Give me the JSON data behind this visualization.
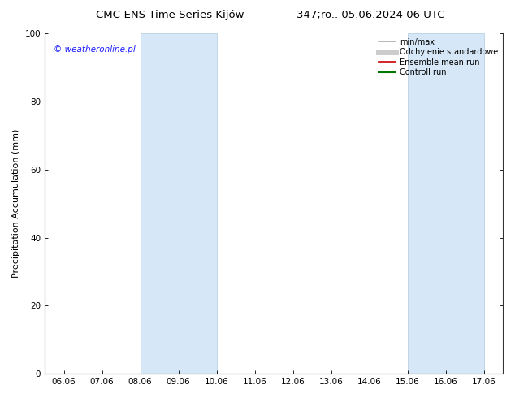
{
  "title_left": "CMC-ENS Time Series Kijów",
  "title_right": "347;ro.. 05.06.2024 06 UTC",
  "ylabel": "Precipitation Accumulation (mm)",
  "ylim": [
    0,
    100
  ],
  "yticks": [
    0,
    20,
    40,
    60,
    80,
    100
  ],
  "xtick_labels": [
    "06.06",
    "07.06",
    "08.06",
    "09.06",
    "10.06",
    "11.06",
    "12.06",
    "13.06",
    "14.06",
    "15.06",
    "16.06",
    "17.06"
  ],
  "xtick_positions": [
    0,
    1,
    2,
    3,
    4,
    5,
    6,
    7,
    8,
    9,
    10,
    11
  ],
  "xlim": [
    -0.5,
    11.5
  ],
  "shade_bands": [
    {
      "xmin": 2.0,
      "xmax": 4.0
    },
    {
      "xmin": 9.0,
      "xmax": 11.0
    }
  ],
  "shade_color": "#d6e8f7",
  "shade_alpha": 1.0,
  "shade_edge_color": "#b0cce0",
  "watermark": "© weatheronline.pl",
  "watermark_color": "#1a1aff",
  "watermark_fontsize": 7.5,
  "legend_entries": [
    {
      "label": "min/max",
      "color": "#aaaaaa",
      "lw": 1.2
    },
    {
      "label": "Odchylenie standardowe",
      "color": "#cccccc",
      "lw": 5
    },
    {
      "label": "Ensemble mean run",
      "color": "#cc0000",
      "lw": 1.2
    },
    {
      "label": "Controll run",
      "color": "#007700",
      "lw": 1.5
    }
  ],
  "background_color": "#ffffff",
  "title_fontsize": 9.5,
  "axis_label_fontsize": 8,
  "tick_fontsize": 7.5,
  "legend_fontsize": 7,
  "right_tick": true
}
